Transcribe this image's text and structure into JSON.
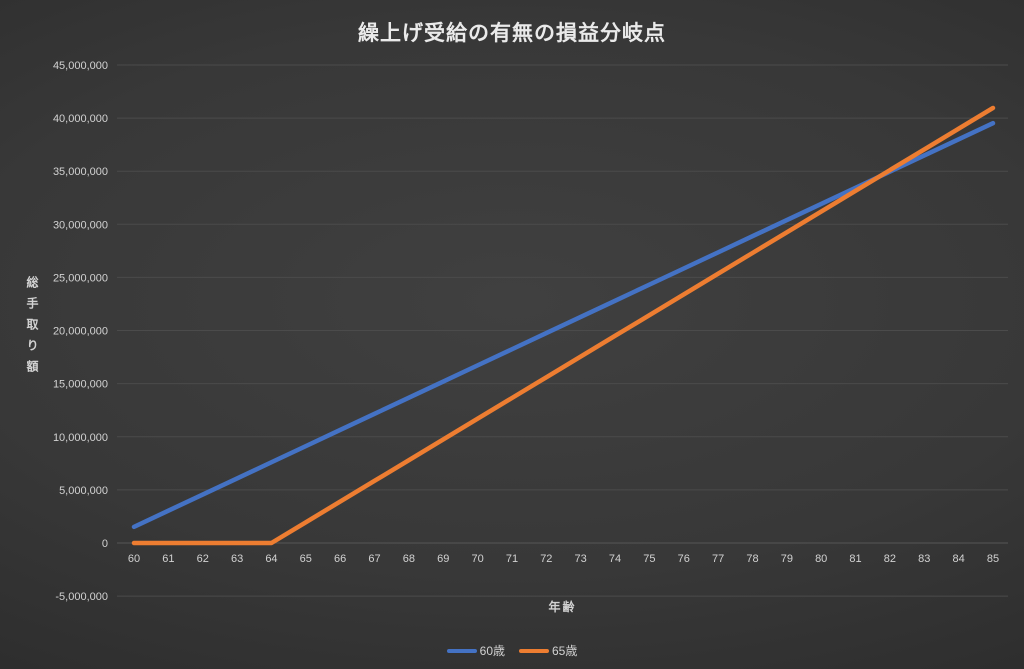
{
  "chart_data": {
    "type": "line",
    "title": "繰上げ受給の有無の損益分岐点",
    "xlabel": "年齢",
    "ylabel": "総手取り額",
    "x": [
      60,
      61,
      62,
      63,
      64,
      65,
      66,
      67,
      68,
      69,
      70,
      71,
      72,
      73,
      74,
      75,
      76,
      77,
      78,
      79,
      80,
      81,
      82,
      83,
      84,
      85
    ],
    "series": [
      {
        "name": "60歳",
        "color": "#4472C4",
        "values": [
          1520000,
          3040000,
          4560000,
          6080000,
          7600000,
          9120000,
          10640000,
          12160000,
          13680000,
          15200000,
          16720000,
          18240000,
          19760000,
          21280000,
          22800000,
          24320000,
          25840000,
          27360000,
          28880000,
          30400000,
          31920000,
          33440000,
          34960000,
          36480000,
          38000000,
          39520000
        ]
      },
      {
        "name": "65歳",
        "color": "#ED7D31",
        "values": [
          0,
          0,
          0,
          0,
          0,
          1950000,
          3900000,
          5850000,
          7800000,
          9750000,
          11700000,
          13650000,
          15600000,
          17550000,
          19500000,
          21450000,
          23400000,
          25350000,
          27300000,
          29250000,
          31200000,
          33150000,
          35100000,
          37050000,
          39000000,
          40950000
        ]
      }
    ],
    "ylim": [
      -5000000,
      45000000
    ],
    "ytick_step": 5000000,
    "grid": true,
    "legend_position": "bottom",
    "colors": {
      "background": "#333333",
      "text": "#d2d2d2",
      "title": "#eaeaea",
      "gridline": "#4b4b4b",
      "zero_axis": "#565656"
    }
  }
}
